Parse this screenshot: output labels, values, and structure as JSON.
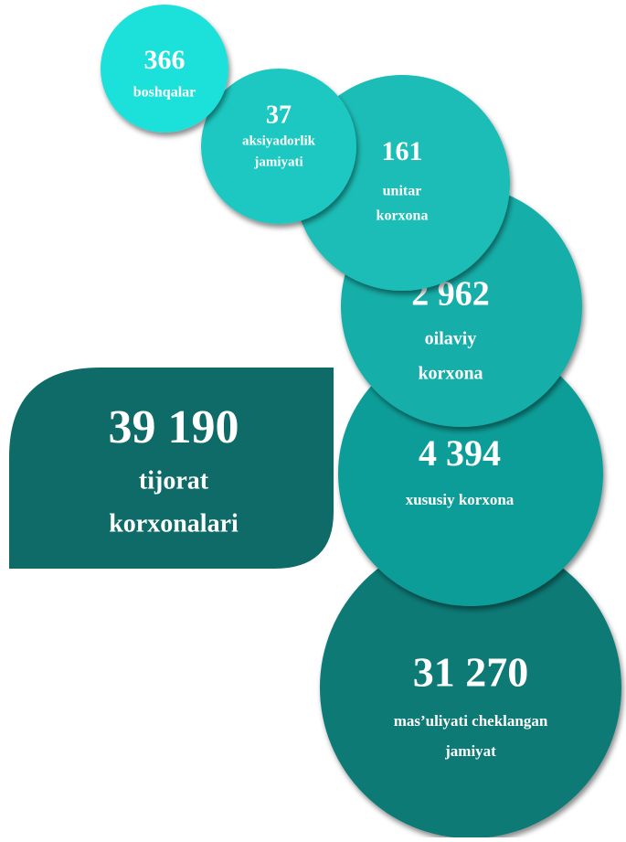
{
  "total": {
    "value": "39 190",
    "label": [
      "tijorat",
      "korxonalari"
    ]
  },
  "items": [
    {
      "value": "366",
      "label": [
        "boshqalar"
      ]
    },
    {
      "value": "37",
      "label": [
        "aksiyadorlik",
        "jamiyati"
      ]
    },
    {
      "value": "161",
      "label": [
        "unitar",
        "korxona"
      ]
    },
    {
      "value": "2 962",
      "label": [
        "oilaviy",
        "korxona"
      ]
    },
    {
      "value": "4 394",
      "label": [
        "xususiy korxona"
      ]
    },
    {
      "value": "31 270",
      "label": [
        "mas’uliyati cheklangan",
        "jamiyat"
      ]
    }
  ]
}
